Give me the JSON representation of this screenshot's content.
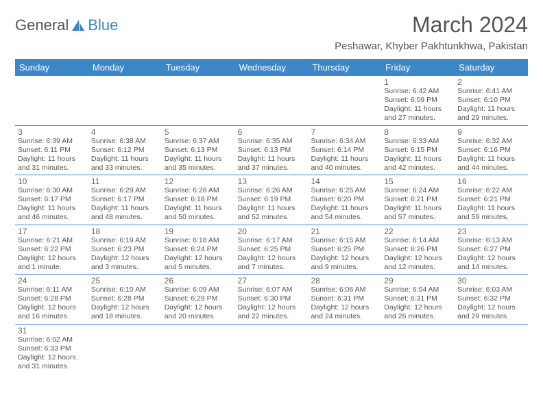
{
  "logo": {
    "text1": "General",
    "text2": "Blue",
    "text1_color": "#6a6a6a",
    "text2_color": "#3b87c8",
    "icon_color": "#3b87c8"
  },
  "title": "March 2024",
  "subtitle": "Peshawar, Khyber Pakhtunkhwa, Pakistan",
  "colors": {
    "header_bg": "#3b87c8",
    "header_fg": "#ffffff",
    "border": "#3b87c8",
    "text": "#555555",
    "daynum": "#666666"
  },
  "fonts": {
    "title_size": 32,
    "subtitle_size": 15,
    "dayhead_size": 13,
    "daynum_size": 12,
    "body_size": 10.5
  },
  "day_headers": [
    "Sunday",
    "Monday",
    "Tuesday",
    "Wednesday",
    "Thursday",
    "Friday",
    "Saturday"
  ],
  "weeks": [
    [
      null,
      null,
      null,
      null,
      null,
      {
        "n": "1",
        "sunrise": "Sunrise: 6:42 AM",
        "sunset": "Sunset: 6:09 PM",
        "day1": "Daylight: 11 hours",
        "day2": "and 27 minutes."
      },
      {
        "n": "2",
        "sunrise": "Sunrise: 6:41 AM",
        "sunset": "Sunset: 6:10 PM",
        "day1": "Daylight: 11 hours",
        "day2": "and 29 minutes."
      }
    ],
    [
      {
        "n": "3",
        "sunrise": "Sunrise: 6:39 AM",
        "sunset": "Sunset: 6:11 PM",
        "day1": "Daylight: 11 hours",
        "day2": "and 31 minutes."
      },
      {
        "n": "4",
        "sunrise": "Sunrise: 6:38 AM",
        "sunset": "Sunset: 6:12 PM",
        "day1": "Daylight: 11 hours",
        "day2": "and 33 minutes."
      },
      {
        "n": "5",
        "sunrise": "Sunrise: 6:37 AM",
        "sunset": "Sunset: 6:13 PM",
        "day1": "Daylight: 11 hours",
        "day2": "and 35 minutes."
      },
      {
        "n": "6",
        "sunrise": "Sunrise: 6:35 AM",
        "sunset": "Sunset: 6:13 PM",
        "day1": "Daylight: 11 hours",
        "day2": "and 37 minutes."
      },
      {
        "n": "7",
        "sunrise": "Sunrise: 6:34 AM",
        "sunset": "Sunset: 6:14 PM",
        "day1": "Daylight: 11 hours",
        "day2": "and 40 minutes."
      },
      {
        "n": "8",
        "sunrise": "Sunrise: 6:33 AM",
        "sunset": "Sunset: 6:15 PM",
        "day1": "Daylight: 11 hours",
        "day2": "and 42 minutes."
      },
      {
        "n": "9",
        "sunrise": "Sunrise: 6:32 AM",
        "sunset": "Sunset: 6:16 PM",
        "day1": "Daylight: 11 hours",
        "day2": "and 44 minutes."
      }
    ],
    [
      {
        "n": "10",
        "sunrise": "Sunrise: 6:30 AM",
        "sunset": "Sunset: 6:17 PM",
        "day1": "Daylight: 11 hours",
        "day2": "and 46 minutes."
      },
      {
        "n": "11",
        "sunrise": "Sunrise: 6:29 AM",
        "sunset": "Sunset: 6:17 PM",
        "day1": "Daylight: 11 hours",
        "day2": "and 48 minutes."
      },
      {
        "n": "12",
        "sunrise": "Sunrise: 6:28 AM",
        "sunset": "Sunset: 6:18 PM",
        "day1": "Daylight: 11 hours",
        "day2": "and 50 minutes."
      },
      {
        "n": "13",
        "sunrise": "Sunrise: 6:26 AM",
        "sunset": "Sunset: 6:19 PM",
        "day1": "Daylight: 11 hours",
        "day2": "and 52 minutes."
      },
      {
        "n": "14",
        "sunrise": "Sunrise: 6:25 AM",
        "sunset": "Sunset: 6:20 PM",
        "day1": "Daylight: 11 hours",
        "day2": "and 54 minutes."
      },
      {
        "n": "15",
        "sunrise": "Sunrise: 6:24 AM",
        "sunset": "Sunset: 6:21 PM",
        "day1": "Daylight: 11 hours",
        "day2": "and 57 minutes."
      },
      {
        "n": "16",
        "sunrise": "Sunrise: 6:22 AM",
        "sunset": "Sunset: 6:21 PM",
        "day1": "Daylight: 11 hours",
        "day2": "and 59 minutes."
      }
    ],
    [
      {
        "n": "17",
        "sunrise": "Sunrise: 6:21 AM",
        "sunset": "Sunset: 6:22 PM",
        "day1": "Daylight: 12 hours",
        "day2": "and 1 minute."
      },
      {
        "n": "18",
        "sunrise": "Sunrise: 6:19 AM",
        "sunset": "Sunset: 6:23 PM",
        "day1": "Daylight: 12 hours",
        "day2": "and 3 minutes."
      },
      {
        "n": "19",
        "sunrise": "Sunrise: 6:18 AM",
        "sunset": "Sunset: 6:24 PM",
        "day1": "Daylight: 12 hours",
        "day2": "and 5 minutes."
      },
      {
        "n": "20",
        "sunrise": "Sunrise: 6:17 AM",
        "sunset": "Sunset: 6:25 PM",
        "day1": "Daylight: 12 hours",
        "day2": "and 7 minutes."
      },
      {
        "n": "21",
        "sunrise": "Sunrise: 6:15 AM",
        "sunset": "Sunset: 6:25 PM",
        "day1": "Daylight: 12 hours",
        "day2": "and 9 minutes."
      },
      {
        "n": "22",
        "sunrise": "Sunrise: 6:14 AM",
        "sunset": "Sunset: 6:26 PM",
        "day1": "Daylight: 12 hours",
        "day2": "and 12 minutes."
      },
      {
        "n": "23",
        "sunrise": "Sunrise: 6:13 AM",
        "sunset": "Sunset: 6:27 PM",
        "day1": "Daylight: 12 hours",
        "day2": "and 14 minutes."
      }
    ],
    [
      {
        "n": "24",
        "sunrise": "Sunrise: 6:11 AM",
        "sunset": "Sunset: 6:28 PM",
        "day1": "Daylight: 12 hours",
        "day2": "and 16 minutes."
      },
      {
        "n": "25",
        "sunrise": "Sunrise: 6:10 AM",
        "sunset": "Sunset: 6:28 PM",
        "day1": "Daylight: 12 hours",
        "day2": "and 18 minutes."
      },
      {
        "n": "26",
        "sunrise": "Sunrise: 6:09 AM",
        "sunset": "Sunset: 6:29 PM",
        "day1": "Daylight: 12 hours",
        "day2": "and 20 minutes."
      },
      {
        "n": "27",
        "sunrise": "Sunrise: 6:07 AM",
        "sunset": "Sunset: 6:30 PM",
        "day1": "Daylight: 12 hours",
        "day2": "and 22 minutes."
      },
      {
        "n": "28",
        "sunrise": "Sunrise: 6:06 AM",
        "sunset": "Sunset: 6:31 PM",
        "day1": "Daylight: 12 hours",
        "day2": "and 24 minutes."
      },
      {
        "n": "29",
        "sunrise": "Sunrise: 6:04 AM",
        "sunset": "Sunset: 6:31 PM",
        "day1": "Daylight: 12 hours",
        "day2": "and 26 minutes."
      },
      {
        "n": "30",
        "sunrise": "Sunrise: 6:03 AM",
        "sunset": "Sunset: 6:32 PM",
        "day1": "Daylight: 12 hours",
        "day2": "and 29 minutes."
      }
    ],
    [
      {
        "n": "31",
        "sunrise": "Sunrise: 6:02 AM",
        "sunset": "Sunset: 6:33 PM",
        "day1": "Daylight: 12 hours",
        "day2": "and 31 minutes."
      },
      null,
      null,
      null,
      null,
      null,
      null
    ]
  ]
}
